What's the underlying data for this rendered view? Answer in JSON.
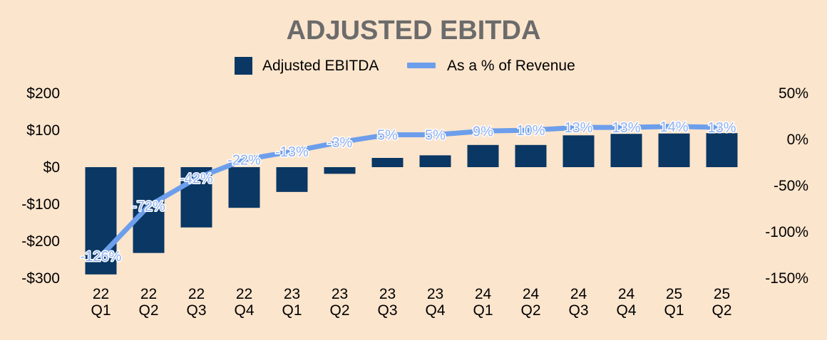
{
  "chart_data": {
    "type": "bar",
    "title": "ADJUSTED EBITDA",
    "categories": [
      "22\nQ1",
      "22\nQ2",
      "22\nQ3",
      "22\nQ4",
      "23\nQ1",
      "23\nQ2",
      "23\nQ3",
      "23\nQ4",
      "24\nQ1",
      "24\nQ2",
      "24\nQ3",
      "24\nQ4",
      "25\nQ1",
      "25\nQ2"
    ],
    "series": [
      {
        "name": "Adjusted EBITDA",
        "type": "bar",
        "axis": "left",
        "color": "#0a3763",
        "values": [
          -290,
          -232,
          -163,
          -110,
          -67,
          -18,
          25,
          32,
          60,
          60,
          86,
          90,
          91,
          92
        ]
      },
      {
        "name": "As a % of Revenue",
        "type": "line",
        "axis": "right",
        "color": "#6d9eeb",
        "values": [
          -126,
          -72,
          -42,
          -22,
          -13,
          -3,
          5,
          5,
          9,
          10,
          13,
          13,
          14,
          13
        ],
        "labels": [
          "-126%",
          "-72%",
          "-42%",
          "-22%",
          "-13%",
          "-3%",
          "5%",
          "5%",
          "9%",
          "10%",
          "13%",
          "13%",
          "14%",
          "13%"
        ]
      }
    ],
    "y_left": {
      "lim": [
        -300,
        200
      ],
      "ticks": [
        200,
        100,
        0,
        -100,
        -200,
        -300
      ],
      "tick_labels": [
        "$200",
        "$100",
        "$0",
        "-$100",
        "-$200",
        "-$300"
      ]
    },
    "y_right": {
      "lim": [
        -150,
        50
      ],
      "ticks": [
        50,
        0,
        -50,
        -100,
        -150
      ],
      "tick_labels": [
        "50%",
        "0%",
        "-50%",
        "-100%",
        "-150%"
      ]
    },
    "legend": "top-center",
    "grid": false
  }
}
